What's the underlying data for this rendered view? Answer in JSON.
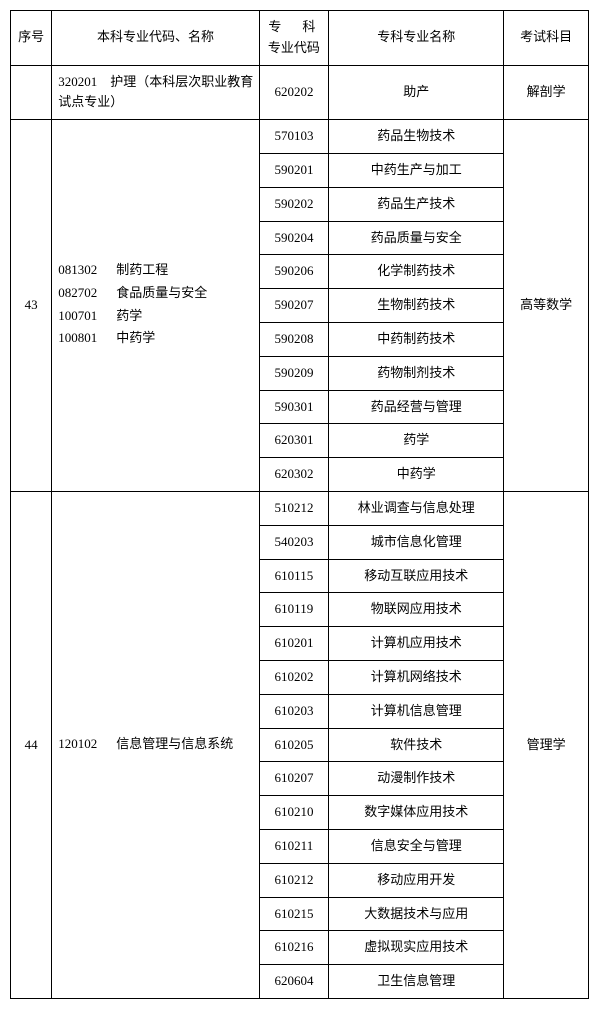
{
  "headers": {
    "seq": "序号",
    "major": "本科专业代码、名称",
    "code_line1": "专　科",
    "code_line2": "专业代码",
    "specialty_name": "专科专业名称",
    "exam": "考试科目"
  },
  "groups": [
    {
      "seq": "",
      "major_raw": "320201　护理（本科层次职业教育试点专业）",
      "majors": [],
      "exam": "解剖学",
      "items": [
        {
          "code": "620202",
          "name": "助产"
        }
      ]
    },
    {
      "seq": "43",
      "majors": [
        {
          "code": "081302",
          "name": "制药工程"
        },
        {
          "code": "082702",
          "name": "食品质量与安全"
        },
        {
          "code": "100701",
          "name": "药学"
        },
        {
          "code": "100801",
          "name": "中药学"
        }
      ],
      "exam": "高等数学",
      "items": [
        {
          "code": "570103",
          "name": "药品生物技术"
        },
        {
          "code": "590201",
          "name": "中药生产与加工"
        },
        {
          "code": "590202",
          "name": "药品生产技术"
        },
        {
          "code": "590204",
          "name": "药品质量与安全"
        },
        {
          "code": "590206",
          "name": "化学制药技术"
        },
        {
          "code": "590207",
          "name": "生物制药技术"
        },
        {
          "code": "590208",
          "name": "中药制药技术"
        },
        {
          "code": "590209",
          "name": "药物制剂技术"
        },
        {
          "code": "590301",
          "name": "药品经营与管理"
        },
        {
          "code": "620301",
          "name": "药学"
        },
        {
          "code": "620302",
          "name": "中药学"
        }
      ]
    },
    {
      "seq": "44",
      "majors": [
        {
          "code": "120102",
          "name": "信息管理与信息系统"
        }
      ],
      "exam": "管理学",
      "items": [
        {
          "code": "510212",
          "name": "林业调查与信息处理"
        },
        {
          "code": "540203",
          "name": "城市信息化管理"
        },
        {
          "code": "610115",
          "name": "移动互联应用技术"
        },
        {
          "code": "610119",
          "name": "物联网应用技术"
        },
        {
          "code": "610201",
          "name": "计算机应用技术"
        },
        {
          "code": "610202",
          "name": "计算机网络技术"
        },
        {
          "code": "610203",
          "name": "计算机信息管理"
        },
        {
          "code": "610205",
          "name": "软件技术"
        },
        {
          "code": "610207",
          "name": "动漫制作技术"
        },
        {
          "code": "610210",
          "name": "数字媒体应用技术"
        },
        {
          "code": "610211",
          "name": "信息安全与管理"
        },
        {
          "code": "610212",
          "name": "移动应用开发"
        },
        {
          "code": "610215",
          "name": "大数据技术与应用"
        },
        {
          "code": "610216",
          "name": "虚拟现实应用技术"
        },
        {
          "code": "620604",
          "name": "卫生信息管理"
        }
      ]
    }
  ]
}
